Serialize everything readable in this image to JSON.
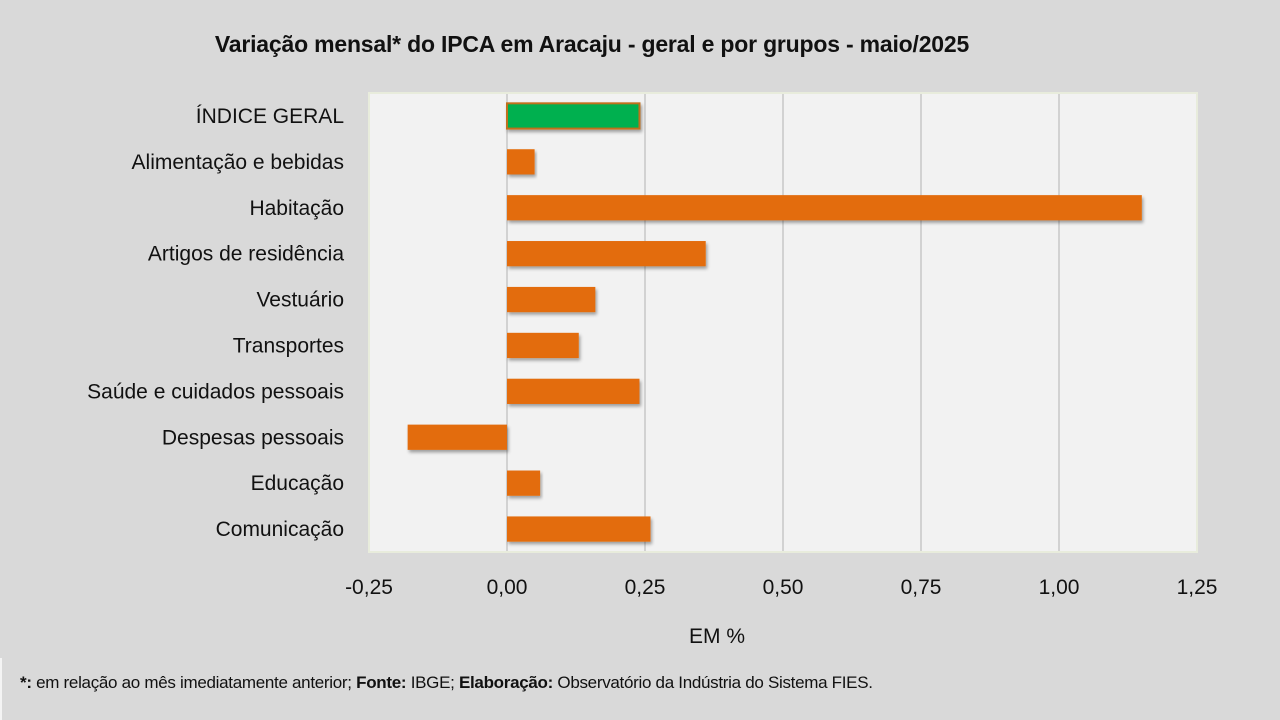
{
  "chart_data": {
    "type": "bar",
    "orientation": "horizontal",
    "title": "Variação  mensal*  do IPCA em Aracaju  - geral e por grupos  - maio/2025",
    "xlabel": "EM %",
    "ylabel": "",
    "xlim": [
      -0.25,
      1.25
    ],
    "xticks": [
      -0.25,
      0.0,
      0.25,
      0.5,
      0.75,
      1.0,
      1.25
    ],
    "xtick_labels": [
      "-0,25",
      "0,00",
      "0,25",
      "0,50",
      "0,75",
      "1,00",
      "1,25"
    ],
    "grid": "vertical",
    "legend": "none",
    "categories": [
      "ÍNDICE GERAL",
      "Alimentação e bebidas",
      "Habitação",
      "Artigos de residência",
      "Vestuário",
      "Transportes",
      "Saúde e cuidados pessoais",
      "Despesas pessoais",
      "Educação",
      "Comunicação"
    ],
    "values": [
      0.24,
      0.05,
      1.15,
      0.36,
      0.16,
      0.13,
      0.24,
      -0.18,
      0.06,
      0.26
    ],
    "colors": {
      "highlight": "#00b050",
      "highlight_border": "#c0701e",
      "default": "#e36c0a",
      "plot_background": "#f2f2f2",
      "page_background": "#d9d9d9",
      "gridline": "#c8c8c8"
    },
    "highlight_index": 0
  },
  "footnote": {
    "asterisk_label": "*:",
    "asterisk_text": " em relação ao mês imediatamente  anterior; ",
    "source_label": "Fonte:",
    "source_text": " IBGE; ",
    "author_label": "Elaboração:",
    "author_text": " Observatório da Indústria do Sistema FIES."
  }
}
